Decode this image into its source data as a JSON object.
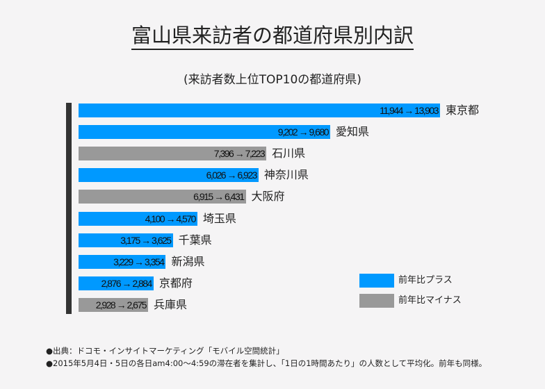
{
  "chart_data": {
    "type": "bar",
    "title": "富山県来訪者の都道府県別内訳",
    "subtitle": "(来訪者数上位TOP10の都道府県)",
    "categories": [
      "東京都",
      "愛知県",
      "石川県",
      "神奈川県",
      "大阪府",
      "埼玉県",
      "千葉県",
      "新潟県",
      "京都府",
      "兵庫県"
    ],
    "series": [
      {
        "name": "前年",
        "values": [
          11944,
          9202,
          7396,
          6026,
          6915,
          4100,
          3175,
          3229,
          2876,
          2928
        ]
      },
      {
        "name": "2015",
        "values": [
          13903,
          9680,
          7223,
          6923,
          6431,
          4570,
          3625,
          3354,
          2884,
          2675
        ]
      }
    ],
    "value_labels": [
      "11,944 → 13,903",
      "9,202 → 9,680",
      "7,396 → 7,223",
      "6,026 → 6,923",
      "6,915 → 6,431",
      "4,100 → 4,570",
      "3,175 → 3,625",
      "3,229 → 3,354",
      "2,876 → 2,884",
      "2,928 → 2,675"
    ],
    "orientation": "horizontal",
    "grid": false,
    "legend_placement": "bottom-right",
    "legend": [
      {
        "label": "前年比プラス",
        "color": "#0099ff"
      },
      {
        "label": "前年比マイナス",
        "color": "#999999"
      }
    ]
  },
  "notes": [
    "●出典：ドコモ・インサイトマーケティング「モバイル空間統計」",
    "●2015年5月4日・5日の各日am4:00～4:59の滞在者を集計し、「1日の1時間あたり」の人数として平均化。前年も同様。"
  ]
}
